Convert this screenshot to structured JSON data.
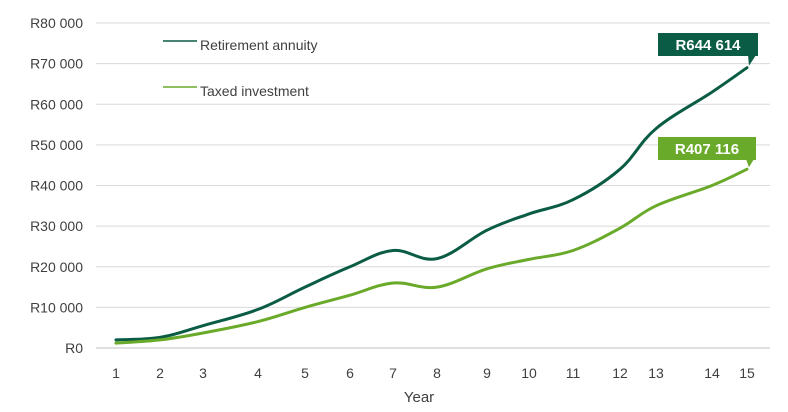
{
  "chart_data": {
    "type": "line",
    "xlabel": "Year",
    "ylabel": "",
    "title": "",
    "x": [
      1,
      2,
      3,
      4,
      5,
      6,
      7,
      8,
      9,
      10,
      11,
      12,
      13,
      14,
      15
    ],
    "y_ticks": [
      "R0",
      "R10 000",
      "R20 000",
      "R30 000",
      "R40 000",
      "R50 000",
      "R60 000",
      "R70 000",
      "R80 000"
    ],
    "ylim": [
      0,
      80000
    ],
    "grid": true,
    "legend_position": "top-left",
    "series": [
      {
        "name": "Retirement annuity",
        "color": "#0b5c45",
        "values": [
          2000,
          2600,
          5500,
          9500,
          15000,
          20000,
          24000,
          22000,
          29000,
          33000,
          36500,
          44000,
          54000,
          63000,
          69000
        ],
        "callout": "R644 614"
      },
      {
        "name": "Taxed investment",
        "color": "#6aaa2a",
        "values": [
          1200,
          2000,
          3700,
          6500,
          10000,
          13000,
          16000,
          15000,
          19500,
          21800,
          24000,
          29500,
          35000,
          40000,
          44000
        ],
        "callout": "R407 116"
      }
    ]
  }
}
